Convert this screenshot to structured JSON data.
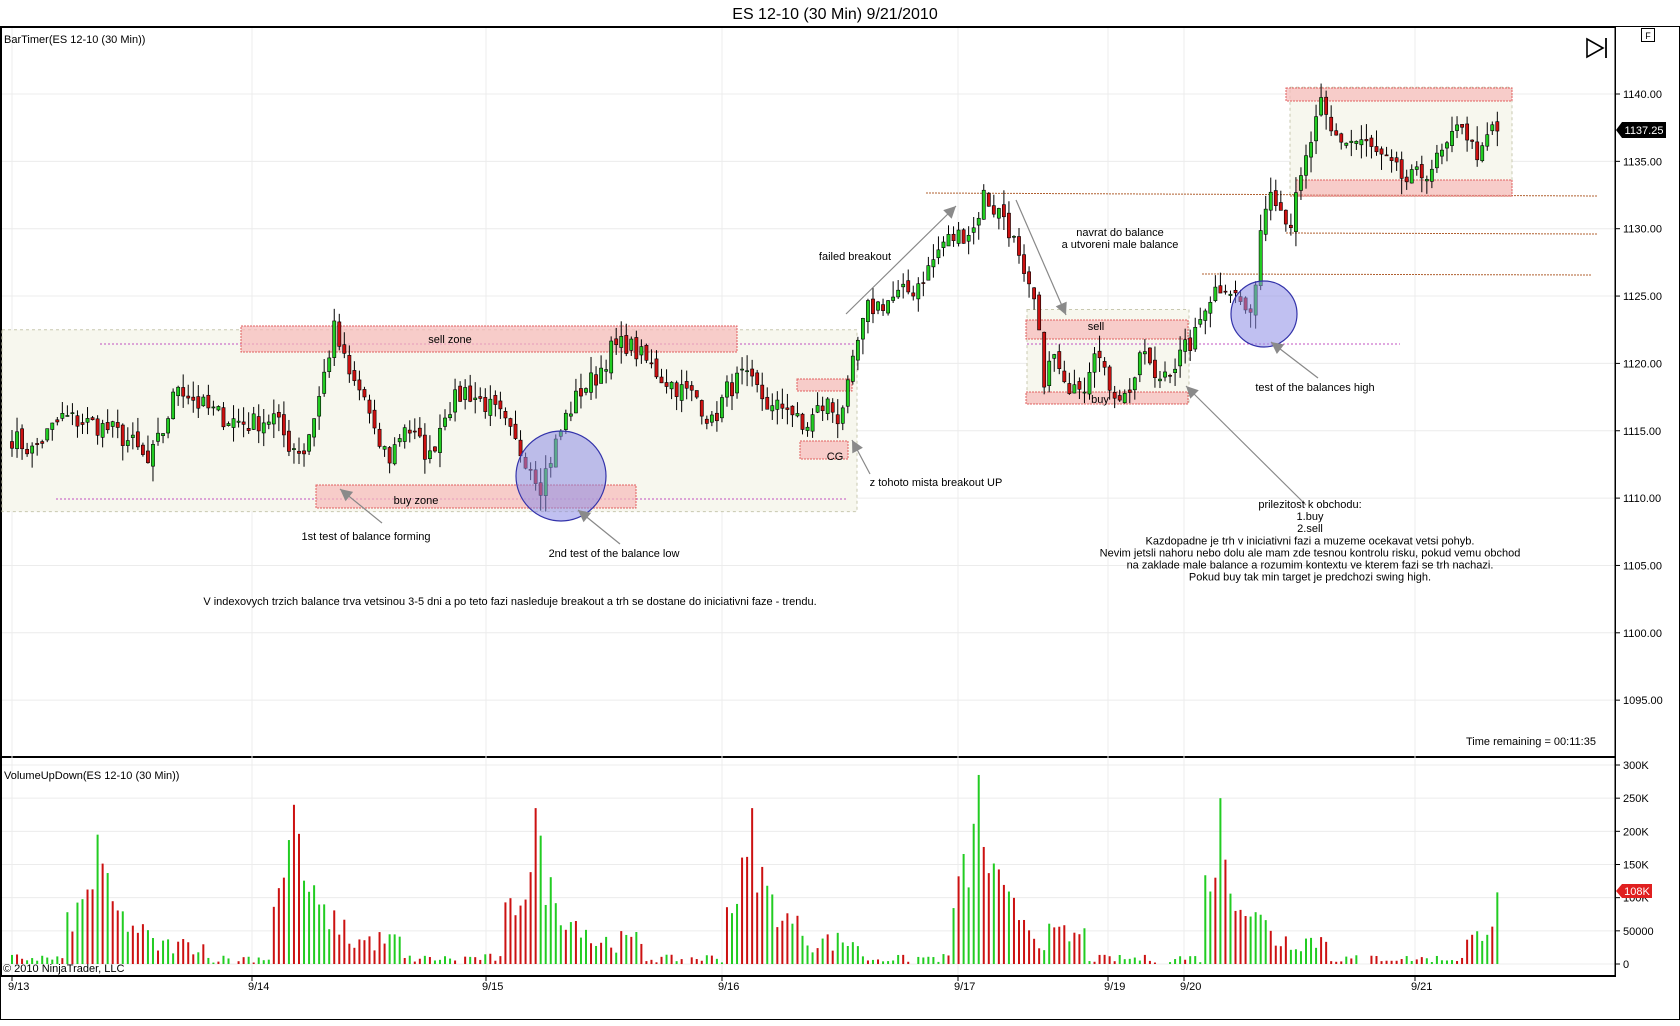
{
  "window": {
    "title": "ES 12-10 (30 Min)  9/21/2010",
    "f_button": "F"
  },
  "price_panel": {
    "label": "BarTimer(ES 12-10 (30 Min))",
    "time_remaining": "Time remaining = 00:11:35",
    "last_price": "1137.25",
    "copyright": "© 2010 NinjaTrader, LLC"
  },
  "volume_panel": {
    "label": "VolumeUpDown(ES 12-10 (30 Min))",
    "last_volume": "108K",
    "axis_ticks": [
      "300K",
      "250K",
      "200K",
      "150K",
      "100K",
      "50000",
      "0"
    ]
  },
  "annotations": {
    "sell_zone": "sell zone",
    "buy_zone": "buy zone",
    "first_test": "1st test of balance forming",
    "second_test": "2nd test of the balance low",
    "index_note": "V indexovych trzich balance trva vetsinou 3-5 dni a po teto fazi nasleduje breakout a trh se dostane do iniciativni faze -  trendu.",
    "cg": "CG",
    "breakout_up": "z tohoto mista breakout UP",
    "failed_breakout": "failed breakout",
    "navrat_1": "navrat do balance",
    "navrat_2": "a utvoreni male balance",
    "sell": "sell",
    "buy": "buy",
    "test_high": "test of the balances  high",
    "opportunity": [
      "prilezitost k obchodu:",
      "1.buy",
      "2.sell",
      "Kazdopadne je trh v iniciativni fazi a muzeme ocekavat vetsi pohyb.",
      "Nevim jetsli nahoru nebo dolu ale mam zde tesnou kontrolu risku, pokud vemu obchod",
      "na zaklade male balance a rozumim kontextu ve kterem fazi se trh nachazi.",
      "Pokud buy tak min target je predchozi swing high."
    ]
  },
  "colors": {
    "up": "#22cc22",
    "down": "#cc1111",
    "zone_fill": "#f7b9b9",
    "zone_stroke": "#e06060",
    "circle_fill": "#8c8ce6",
    "level_line": "#c050c0",
    "hline": "#b06030"
  },
  "chart_data": [
    {
      "type": "candlestick",
      "title": "ES 12-10 (30 Min)  9/21/2010",
      "instrument": "ES 12-10",
      "interval": "30 Min",
      "y_ticks": [
        1095.0,
        1100.0,
        1105.0,
        1110.0,
        1115.0,
        1120.0,
        1125.0,
        1130.0,
        1135.0,
        1140.0
      ],
      "y_tick_labels": [
        "1095.00",
        "1100.00",
        "1105.00",
        "1110.00",
        "1115.00",
        "1120.00",
        "1125.00",
        "1130.00",
        "1135.00",
        "1140.00"
      ],
      "x_dates": [
        "9/13",
        "9/14",
        "9/15",
        "9/16",
        "9/17",
        "9/19",
        "9/20",
        "9/21"
      ],
      "last_price": 1137.25,
      "anchors": [
        [
          0,
          1114.5
        ],
        [
          4,
          1113.5
        ],
        [
          10,
          1116.0
        ],
        [
          16,
          1115.5
        ],
        [
          20,
          1115.0
        ],
        [
          24,
          1114.0
        ],
        [
          27,
          1112.5
        ],
        [
          30,
          1115.0
        ],
        [
          33,
          1118.5
        ],
        [
          37,
          1117.0
        ],
        [
          42,
          1116.0
        ],
        [
          47,
          1115.5
        ],
        [
          52,
          1116.0
        ],
        [
          55,
          1114.0
        ],
        [
          58,
          1113.5
        ],
        [
          61,
          1117.5
        ],
        [
          64,
          1122.5
        ],
        [
          67,
          1119.0
        ],
        [
          70,
          1117.5
        ],
        [
          72,
          1114.5
        ],
        [
          75,
          1113.0
        ],
        [
          78,
          1115.5
        ],
        [
          81,
          1114.0
        ],
        [
          83,
          1113.0
        ],
        [
          86,
          1116.5
        ],
        [
          90,
          1118.0
        ],
        [
          94,
          1117.0
        ],
        [
          97,
          1116.0
        ],
        [
          100,
          1114.0
        ],
        [
          103,
          1112.5
        ],
        [
          105,
          1111.0
        ],
        [
          107,
          1113.0
        ],
        [
          110,
          1116.0
        ],
        [
          113,
          1118.0
        ],
        [
          116,
          1119.0
        ],
        [
          119,
          1121.0
        ],
        [
          122,
          1121.5
        ],
        [
          125,
          1120.5
        ],
        [
          129,
          1119.0
        ],
        [
          133,
          1118.0
        ],
        [
          136,
          1117.5
        ],
        [
          139,
          1115.5
        ],
        [
          142,
          1118.0
        ],
        [
          145,
          1119.0
        ],
        [
          148,
          1118.0
        ],
        [
          151,
          1116.5
        ],
        [
          154,
          1117.0
        ],
        [
          157,
          1115.0
        ],
        [
          160,
          1116.5
        ],
        [
          162,
          1117.0
        ],
        [
          164,
          1116.0
        ],
        [
          166,
          1118.0
        ],
        [
          168,
          1121.5
        ],
        [
          170,
          1124.0
        ],
        [
          173,
          1124.5
        ],
        [
          176,
          1125.0
        ],
        [
          179,
          1125.5
        ],
        [
          182,
          1127.0
        ],
        [
          185,
          1129.0
        ],
        [
          188,
          1129.5
        ],
        [
          191,
          1130.0
        ],
        [
          193,
          1132.5
        ],
        [
          195,
          1131.5
        ],
        [
          197,
          1131.0
        ],
        [
          199,
          1129.0
        ],
        [
          201,
          1126.0
        ],
        [
          203,
          1124.5
        ],
        [
          205,
          1119.0
        ],
        [
          207,
          1120.5
        ],
        [
          209,
          1118.0
        ],
        [
          211,
          1119.0
        ],
        [
          213,
          1118.5
        ],
        [
          215,
          1121.5
        ],
        [
          217,
          1119.0
        ],
        [
          219,
          1118.0
        ],
        [
          221,
          1117.5
        ],
        [
          223,
          1119.0
        ],
        [
          225,
          1121.0
        ],
        [
          227,
          1118.5
        ],
        [
          229,
          1119.5
        ],
        [
          231,
          1120.0
        ],
        [
          233,
          1121.0
        ],
        [
          235,
          1122.0
        ],
        [
          237,
          1124.5
        ],
        [
          239,
          1125.5
        ],
        [
          241,
          1126.0
        ],
        [
          243,
          1125.0
        ],
        [
          245,
          1124.0
        ],
        [
          246,
          1123.0
        ],
        [
          248,
          1130.0
        ],
        [
          250,
          1133.5
        ],
        [
          252,
          1131.5
        ],
        [
          254,
          1130.5
        ],
        [
          256,
          1133.5
        ],
        [
          258,
          1136.5
        ],
        [
          260,
          1139.0
        ],
        [
          262,
          1137.0
        ],
        [
          265,
          1136.5
        ],
        [
          268,
          1136.5
        ],
        [
          271,
          1135.5
        ],
        [
          274,
          1134.5
        ],
        [
          277,
          1133.5
        ],
        [
          280,
          1134.0
        ],
        [
          283,
          1135.0
        ],
        [
          286,
          1136.5
        ],
        [
          288,
          1138.0
        ],
        [
          290,
          1136.0
        ],
        [
          292,
          1135.5
        ],
        [
          294,
          1137.5
        ],
        [
          295,
          1137.25
        ]
      ],
      "annotations": [
        "sell zone",
        "buy zone",
        "1st test of balance forming",
        "2nd test of the balance low",
        "CG",
        "z tohoto mista breakout UP",
        "failed breakout",
        "navrat do balance",
        "a utvoreni male balance",
        "sell",
        "buy",
        "test of the balances  high"
      ],
      "zones": [
        {
          "label": "sell zone",
          "from": 1121.0,
          "to": 1123.0
        },
        {
          "label": "buy zone",
          "from": 1109.5,
          "to": 1111.0
        },
        {
          "label": "sell",
          "from": 1121.5,
          "to": 1123.0
        },
        {
          "label": "buy",
          "from": 1117.0,
          "to": 1118.0
        },
        {
          "label": "CG",
          "from": 1113.0,
          "to": 1114.5
        }
      ],
      "grid": true
    },
    {
      "type": "bar",
      "title": "VolumeUpDown(ES 12-10 (30 Min))",
      "ylim": [
        0,
        300000
      ],
      "y_tick_labels": [
        "300K",
        "250K",
        "200K",
        "150K",
        "100K",
        "50000",
        "0"
      ],
      "last_value": 108000,
      "sessions_peaks": [
        {
          "date": "9/13",
          "peak": 195000
        },
        {
          "date": "9/14",
          "peak": 240000
        },
        {
          "date": "9/15",
          "peak": 235000
        },
        {
          "date": "9/16",
          "peak": 235000
        },
        {
          "date": "9/17",
          "peak": 285000
        },
        {
          "date": "9/20",
          "peak": 250000
        },
        {
          "date": "9/21",
          "peak": 108000
        }
      ],
      "series": [
        {
          "name": "up",
          "color": "#22cc22"
        },
        {
          "name": "down",
          "color": "#cc1111"
        }
      ]
    }
  ]
}
